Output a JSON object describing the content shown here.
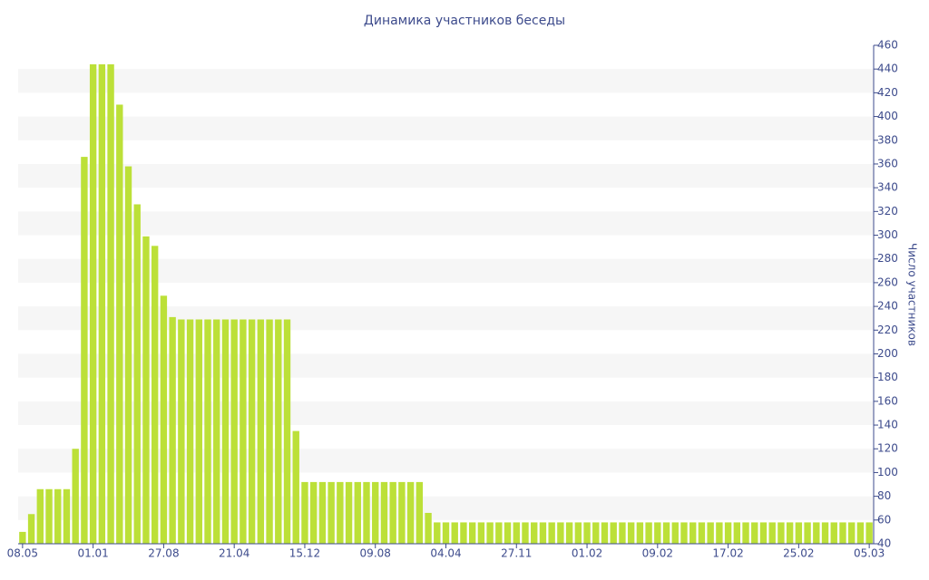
{
  "chart_data": {
    "type": "bar",
    "title": "Динамика участников беседы",
    "y_axis_label": "Число участников",
    "categories": [
      "08.05",
      null,
      null,
      null,
      null,
      null,
      null,
      null,
      "01.01",
      null,
      null,
      null,
      null,
      null,
      null,
      null,
      "27.08",
      null,
      null,
      null,
      null,
      null,
      null,
      null,
      "21.04",
      null,
      null,
      null,
      null,
      null,
      null,
      null,
      "15.12",
      null,
      null,
      null,
      null,
      null,
      null,
      null,
      "09.08",
      null,
      null,
      null,
      null,
      null,
      null,
      null,
      "04.04",
      null,
      null,
      null,
      null,
      null,
      null,
      null,
      "27.11",
      null,
      null,
      null,
      null,
      null,
      null,
      null,
      "01.02",
      null,
      null,
      null,
      null,
      null,
      null,
      null,
      "09.02",
      null,
      null,
      null,
      null,
      null,
      null,
      null,
      "17.02",
      null,
      null,
      null,
      null,
      null,
      null,
      null,
      "25.02",
      null,
      null,
      null,
      null,
      null,
      null,
      null,
      "05.03"
    ],
    "values": [
      50,
      65,
      86,
      86,
      86,
      86,
      120,
      366,
      444,
      444,
      444,
      410,
      358,
      326,
      299,
      291,
      249,
      231,
      229,
      229,
      229,
      229,
      229,
      229,
      229,
      229,
      229,
      229,
      229,
      229,
      229,
      135,
      92,
      92,
      92,
      92,
      92,
      92,
      92,
      92,
      92,
      92,
      92,
      92,
      92,
      92,
      66,
      58,
      58,
      58,
      58,
      58,
      58,
      58,
      58,
      58,
      58,
      58,
      58,
      58,
      58,
      58,
      58,
      58,
      58,
      58,
      58,
      58,
      58,
      58,
      58,
      58,
      58,
      58,
      58,
      58,
      58,
      58,
      58,
      58,
      58,
      58,
      58,
      58,
      58,
      58,
      58,
      58,
      58,
      58,
      58,
      58,
      58,
      58,
      58,
      58,
      58
    ],
    "color": "#bce038",
    "ylim": [
      40,
      460
    ],
    "yticks": [
      40,
      60,
      80,
      100,
      120,
      140,
      160,
      180,
      200,
      220,
      240,
      260,
      280,
      300,
      320,
      340,
      360,
      380,
      400,
      420,
      440,
      460
    ],
    "y_axis_side": "right",
    "grid": true
  }
}
